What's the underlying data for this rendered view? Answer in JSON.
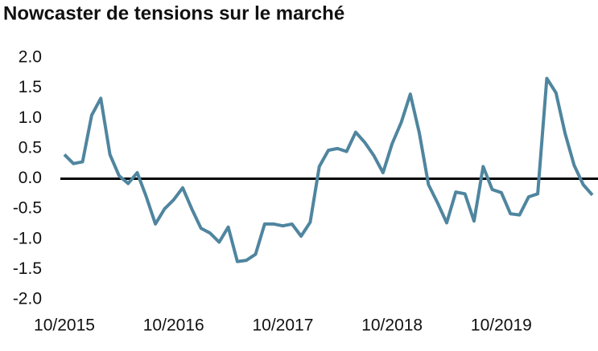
{
  "chart_data": {
    "type": "line",
    "title": "Nowcaster de tensions sur le marché",
    "categories": [
      "10/2015",
      null,
      null,
      null,
      null,
      null,
      null,
      null,
      null,
      null,
      null,
      null,
      "10/2016",
      null,
      null,
      null,
      null,
      null,
      null,
      null,
      null,
      null,
      null,
      null,
      "10/2017",
      null,
      null,
      null,
      null,
      null,
      null,
      null,
      null,
      null,
      null,
      null,
      "10/2018",
      null,
      null,
      null,
      null,
      null,
      null,
      null,
      null,
      null,
      null,
      null,
      "10/2019",
      null,
      null,
      null,
      null,
      null,
      null,
      null,
      null,
      null,
      null
    ],
    "series": [
      {
        "name": "Nowcaster",
        "color": "#4f859f",
        "values": [
          0.4,
          0.25,
          0.28,
          1.05,
          1.33,
          0.4,
          0.05,
          -0.08,
          0.1,
          -0.3,
          -0.75,
          -0.5,
          -0.35,
          -0.15,
          -0.5,
          -0.82,
          -0.9,
          -1.05,
          -0.8,
          -1.37,
          -1.35,
          -1.25,
          -0.75,
          -0.75,
          -0.78,
          -0.75,
          -0.95,
          -0.72,
          0.2,
          0.47,
          0.5,
          0.45,
          0.77,
          0.6,
          0.38,
          0.1,
          0.58,
          0.93,
          1.4,
          0.75,
          -0.1,
          -0.4,
          -0.73,
          -0.22,
          -0.25,
          -0.7,
          0.2,
          -0.18,
          -0.23,
          -0.58,
          -0.6,
          -0.3,
          -0.25,
          1.66,
          1.42,
          0.75,
          0.22,
          -0.1,
          -0.27
        ]
      }
    ],
    "ylim": [
      -2.0,
      2.0
    ],
    "yticks": [
      {
        "value": 2.0,
        "label": "2.0"
      },
      {
        "value": 1.5,
        "label": "1.5"
      },
      {
        "value": 1.0,
        "label": "1.0"
      },
      {
        "value": 0.5,
        "label": "0.5"
      },
      {
        "value": 0.0,
        "label": "0.0"
      },
      {
        "value": -0.5,
        "label": "-0.5"
      },
      {
        "value": -1.0,
        "label": "-1.0"
      },
      {
        "value": -1.5,
        "label": "-1.5"
      },
      {
        "value": -2.0,
        "label": "-2.0"
      }
    ],
    "grid": false
  }
}
